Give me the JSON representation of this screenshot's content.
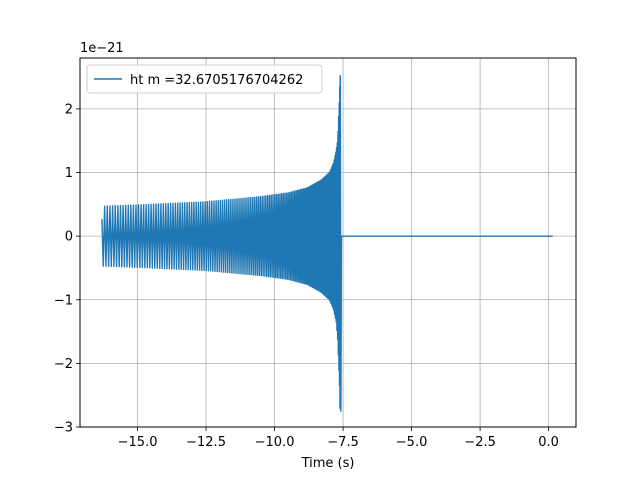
{
  "chart_data": {
    "type": "line",
    "title": "",
    "xlabel": "Time (s)",
    "ylabel": "",
    "y_scale_label": "1e−21",
    "y_scale_factor": 1e-21,
    "xlim": [
      -17.1,
      1.0
    ],
    "ylim": [
      -3.0,
      2.8
    ],
    "xticks": [
      -15.0,
      -12.5,
      -10.0,
      -7.5,
      -5.0,
      -2.5,
      0.0
    ],
    "xtick_labels": [
      "−15.0",
      "−12.5",
      "−10.0",
      "−7.5",
      "−5.0",
      "−2.5",
      "0.0"
    ],
    "yticks": [
      -3,
      -2,
      -1,
      0,
      1,
      2
    ],
    "ytick_labels": [
      "−3",
      "−2",
      "−1",
      "0",
      "1",
      "2"
    ],
    "grid": true,
    "legend_position": "top-left",
    "color": "#1f77b4",
    "series": [
      {
        "name": "ht m =32.6705176704262",
        "x_start": -16.3,
        "merger_time": -7.6,
        "x_end": 0.15,
        "envelope_upper": [
          [
            -16.3,
            0.47
          ],
          [
            -15.0,
            0.49
          ],
          [
            -12.5,
            0.54
          ],
          [
            -10.5,
            0.62
          ],
          [
            -9.5,
            0.68
          ],
          [
            -8.8,
            0.76
          ],
          [
            -8.3,
            0.88
          ],
          [
            -8.0,
            1.0
          ],
          [
            -7.85,
            1.15
          ],
          [
            -7.75,
            1.35
          ],
          [
            -7.7,
            1.5
          ],
          [
            -7.66,
            1.9
          ],
          [
            -7.63,
            2.2
          ],
          [
            -7.61,
            2.52
          ]
        ],
        "envelope_lower": [
          [
            -16.3,
            -0.47
          ],
          [
            -15.0,
            -0.49
          ],
          [
            -12.5,
            -0.54
          ],
          [
            -10.5,
            -0.62
          ],
          [
            -9.5,
            -0.68
          ],
          [
            -8.8,
            -0.76
          ],
          [
            -8.3,
            -0.88
          ],
          [
            -8.0,
            -1.0
          ],
          [
            -7.85,
            -1.15
          ],
          [
            -7.75,
            -1.35
          ],
          [
            -7.7,
            -1.6
          ],
          [
            -7.66,
            -2.0
          ],
          [
            -7.63,
            -2.35
          ],
          [
            -7.61,
            -2.75
          ]
        ],
        "post_merger_value": 0.0
      }
    ]
  }
}
